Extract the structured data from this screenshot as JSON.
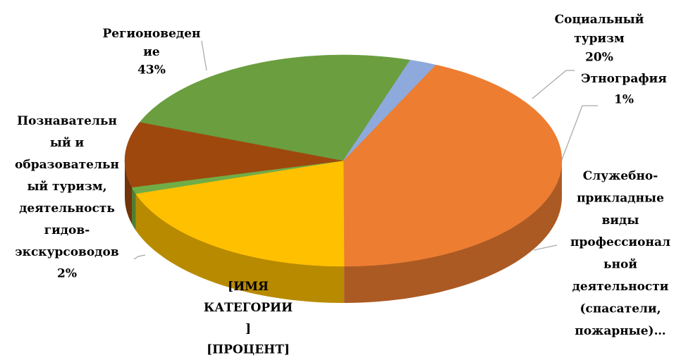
{
  "chart_data": {
    "type": "pie3d",
    "categories": [
      "Регионоведен\nие",
      "Социальный\nтуризм",
      "Этнография",
      "Служебно-\nприкладные\nвиды\nпрофессионал\nьной\nдеятельности\n(спасатели,\nпожарные)…",
      "[ИМЯ\nКАТЕГОРИИ\n]",
      "Познавательн\nый и\nобразовательн\nый туризм,\nдеятельность\nгидов-\nэкскурсоводов"
    ],
    "values": [
      43,
      20,
      1,
      10,
      24,
      2
    ],
    "value_labels": [
      "43%",
      "20%",
      "1%",
      null,
      "[ПРОЦЕНТ]",
      "2%"
    ],
    "colors": [
      "#ED7D31",
      "#FFC000",
      "#70AD47",
      "#9E480E",
      "#6A9E3F",
      "#8EA9DB"
    ]
  }
}
